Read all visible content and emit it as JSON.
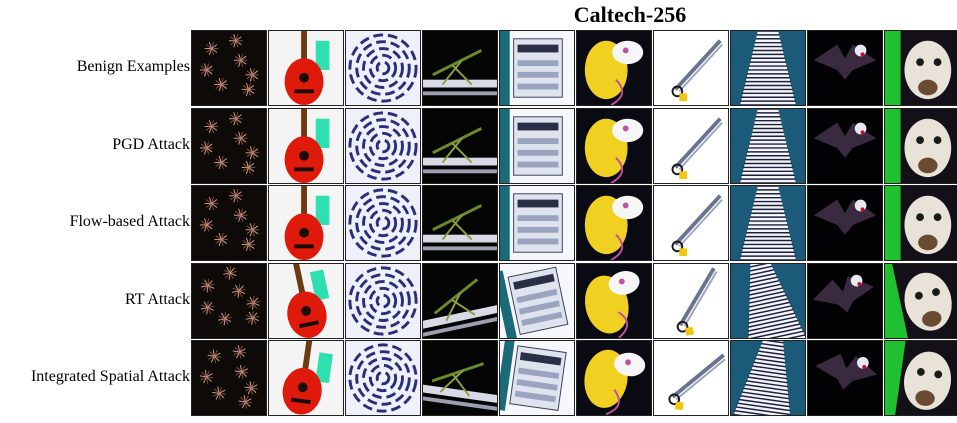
{
  "figure": {
    "title": "Caltech-256"
  },
  "rows": [
    {
      "label": "Benign Examples"
    },
    {
      "label": "PGD Attack"
    },
    {
      "label": "Flow-based Attack"
    },
    {
      "label": "RT  Attack"
    },
    {
      "label": "Integrated Spatial Attack"
    }
  ],
  "columns": [
    {
      "icon": "fireworks-image"
    },
    {
      "icon": "mandolin-image"
    },
    {
      "icon": "spiral-image"
    },
    {
      "icon": "grasshopper-image"
    },
    {
      "icon": "copier-image"
    },
    {
      "icon": "parrot-image"
    },
    {
      "icon": "tweezers-image"
    },
    {
      "icon": "ladder-image"
    },
    {
      "icon": "bat-image"
    },
    {
      "icon": "goat-image"
    }
  ],
  "colors": {
    "background": "#ffffff",
    "tile_border": "#222222"
  }
}
